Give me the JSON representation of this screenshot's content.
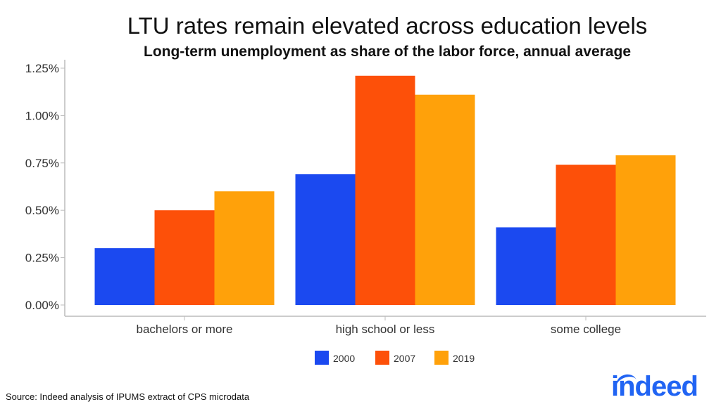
{
  "chart_data": {
    "type": "bar",
    "title": "LTU rates remain elevated across education levels",
    "subtitle": "Long-term unemployment as share of the labor force, annual average",
    "xlabel": "",
    "ylabel": "",
    "categories": [
      "bachelors or more",
      "high school or less",
      "some college"
    ],
    "series": [
      {
        "name": "2000",
        "color": "#1b49f0",
        "values": [
          0.3,
          0.69,
          0.41
        ]
      },
      {
        "name": "2007",
        "color": "#fd5009",
        "values": [
          0.5,
          1.21,
          0.74
        ]
      },
      {
        "name": "2019",
        "color": "#ffa10a",
        "values": [
          0.6,
          1.11,
          0.79
        ]
      }
    ],
    "ylim": [
      0,
      1.25
    ],
    "yticks": [
      "0.00%",
      "0.25%",
      "0.50%",
      "0.75%",
      "1.00%",
      "1.25%"
    ],
    "grid": false,
    "legend": "bottom"
  },
  "source": "Source: Indeed analysis of IPUMS extract of CPS microdata",
  "logo": "indeed"
}
